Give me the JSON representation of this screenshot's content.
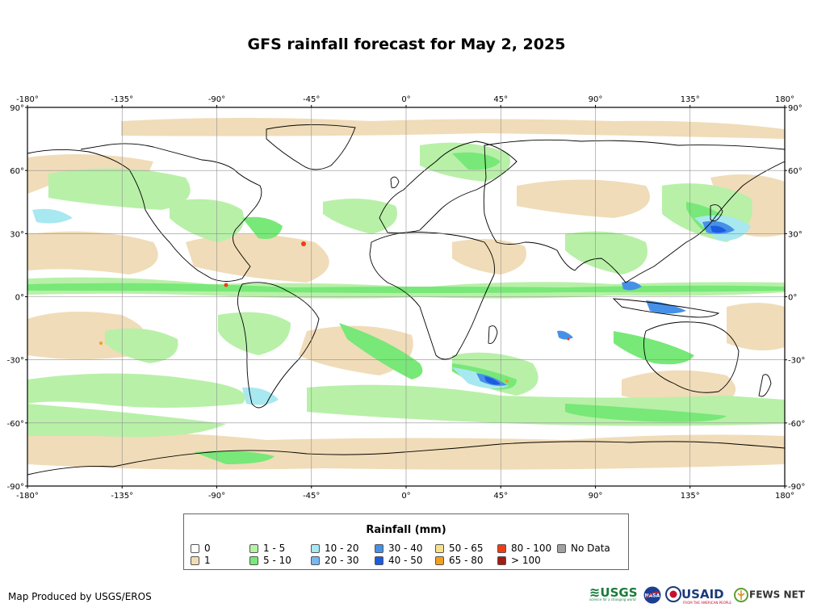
{
  "map": {
    "title": "GFS rainfall forecast for May 2, 2025",
    "lon_labels": [
      "-180°",
      "-135°",
      "-90°",
      "-45°",
      "0°",
      "45°",
      "90°",
      "135°",
      "180°"
    ],
    "lat_labels": [
      "90°",
      "60°",
      "30°",
      "0°",
      "-30°",
      "-60°",
      "-90°"
    ]
  },
  "legend": {
    "title": "Rainfall (mm)",
    "items": [
      {
        "label": "0",
        "color": "#ffffff"
      },
      {
        "label": "1",
        "color": "#f0dcb8"
      },
      {
        "label": "1 - 5",
        "color": "#b8f0a8"
      },
      {
        "label": "5 - 10",
        "color": "#78e878"
      },
      {
        "label": "10 - 20",
        "color": "#a8e8f0"
      },
      {
        "label": "20 - 30",
        "color": "#78b8f0"
      },
      {
        "label": "30 - 40",
        "color": "#4690e8"
      },
      {
        "label": "40 - 50",
        "color": "#1c5ce0"
      },
      {
        "label": "50 - 65",
        "color": "#f8e088"
      },
      {
        "label": "65 - 80",
        "color": "#f0a020"
      },
      {
        "label": "80 - 100",
        "color": "#f03c14"
      },
      {
        "label": "> 100",
        "color": "#a01c14"
      },
      {
        "label": "No Data",
        "color": "#a0a0a0"
      }
    ]
  },
  "footer": {
    "credit": "Map Produced by USGS/EROS",
    "logos": {
      "usgs": "USGS",
      "usgs_tagline": "science for a changing world",
      "nasa": "NASA",
      "usaid": "USAID",
      "usaid_tagline": "FROM THE AMERICAN PEOPLE",
      "fewsnet": "FEWS NET"
    }
  }
}
